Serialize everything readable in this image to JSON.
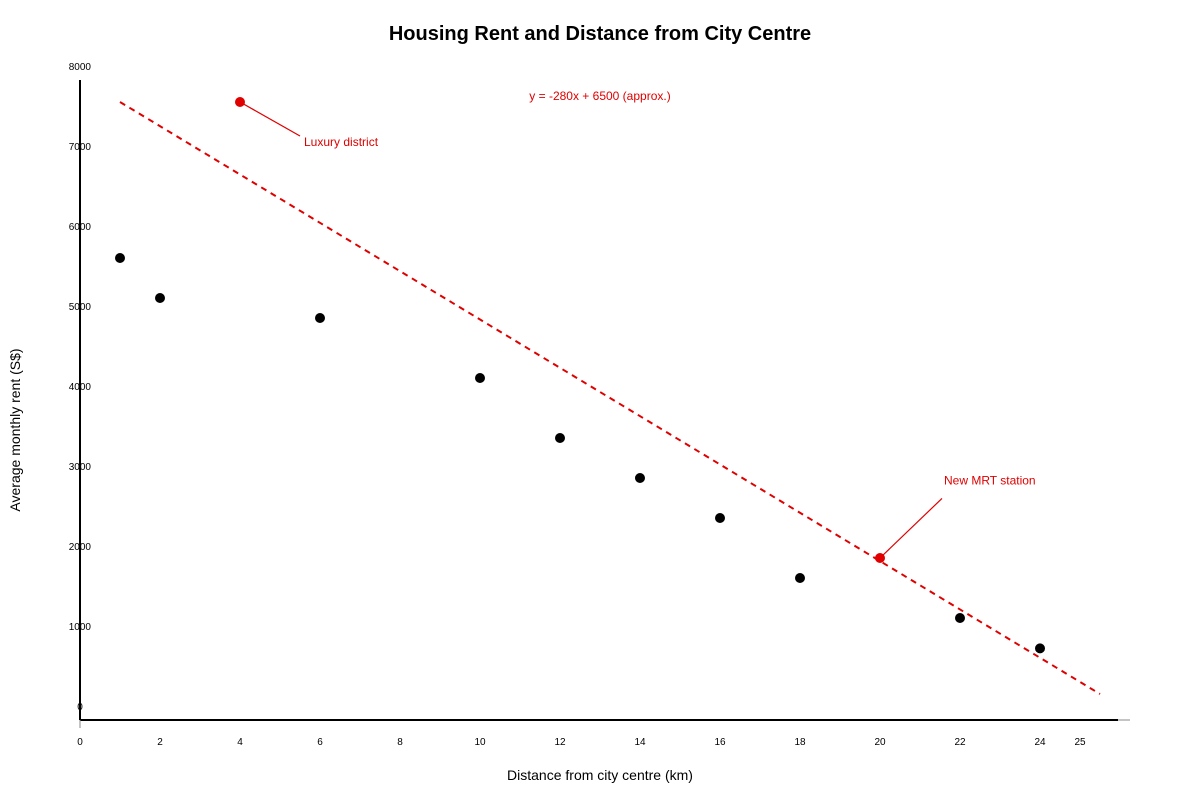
{
  "chart_data": {
    "type": "scatter",
    "title": "Housing Rent and Distance from City Centre",
    "xlabel": "Distance from city centre (km)",
    "ylabel": "Average monthly rent (S$)",
    "xlim": [
      0,
      26
    ],
    "ylim": [
      -150,
      8000
    ],
    "x_ticks": [
      0,
      2,
      4,
      6,
      8,
      10,
      12,
      14,
      16,
      18,
      20,
      22,
      24,
      25
    ],
    "x_tick_labels": [
      "0",
      "2",
      "4",
      "6",
      "8",
      "10",
      "12",
      "14",
      "16",
      "18",
      "20",
      "22",
      "24",
      "25"
    ],
    "y_ticks": [
      0,
      1000,
      2000,
      3000,
      4000,
      5000,
      6000,
      7000,
      8000
    ],
    "y_tick_labels": [
      "0",
      "1000",
      "2000",
      "3000",
      "4000",
      "5000",
      "6000",
      "7000",
      "8000"
    ],
    "grid": false,
    "series": [
      {
        "color": "#000000",
        "points": [
          {
            "x": 1,
            "y": 5600
          },
          {
            "x": 2,
            "y": 5100
          },
          {
            "x": 6,
            "y": 4850
          },
          {
            "x": 10,
            "y": 4100
          },
          {
            "x": 12,
            "y": 3350
          },
          {
            "x": 14,
            "y": 2850
          },
          {
            "x": 16,
            "y": 2350
          },
          {
            "x": 18,
            "y": 1600
          },
          {
            "x": 22,
            "y": 1100
          },
          {
            "x": 24,
            "y": 720
          }
        ]
      },
      {
        "color": "#e00000",
        "points": [
          {
            "x": 4,
            "y": 7550
          },
          {
            "x": 20,
            "y": 1850
          }
        ]
      }
    ],
    "trend_line": {
      "label": "y = -280x + 6500 (approx.)",
      "color": "#e00000",
      "style": "dashed",
      "x1": 1,
      "y1": 7550,
      "x2": 25.5,
      "y2": 150
    },
    "annotations": [
      {
        "text": "Luxury district",
        "point": {
          "x": 4,
          "y": 7550
        },
        "text_at": {
          "x": 5.6,
          "y": 7000
        },
        "color": "#e00000"
      },
      {
        "text": "New MRT station",
        "point": {
          "x": 20,
          "y": 1850
        },
        "text_at": {
          "x": 21.6,
          "y": 2770
        },
        "color": "#e00000"
      }
    ],
    "colors": {
      "axis": "#000000",
      "highlight": "#e00000",
      "point": "#000000"
    }
  }
}
